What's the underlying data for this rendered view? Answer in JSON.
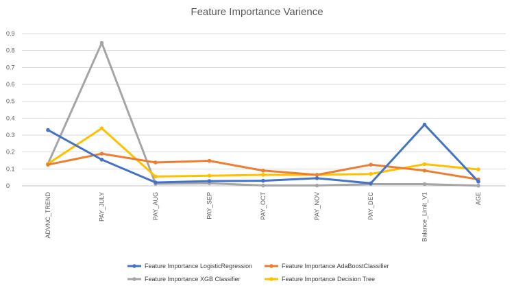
{
  "chart_data": {
    "type": "line",
    "title": "Feature Importance Varience",
    "categories": [
      "ADVNC_TREND",
      "PAY_JULY",
      "PAY_AUG",
      "PAY_SEP",
      "PAY_OCT",
      "PAY_NOV",
      "PAY_DEC",
      "Balance_Limit_V1",
      "AGE"
    ],
    "ylim": [
      0,
      0.9
    ],
    "yticks": [
      "0",
      "0.1",
      "0.2",
      "0.3",
      "0.4",
      "0.5",
      "0.6",
      "0.7",
      "0.8",
      "0.9"
    ],
    "grid": true,
    "legend_position": "bottom",
    "series": [
      {
        "name": "Feature Importance  LogisticRegression",
        "color": "#4472c4",
        "values": [
          0.33,
          0.155,
          0.02,
          0.028,
          0.03,
          0.045,
          0.015,
          0.362,
          0.025
        ]
      },
      {
        "name": "Feature Importance  AdaBoostClassifier",
        "color": "#ed7d31",
        "values": [
          0.125,
          0.19,
          0.138,
          0.148,
          0.09,
          0.065,
          0.125,
          0.09,
          0.038
        ]
      },
      {
        "name": "Feature Importance  XGB Classifier",
        "color": "#a5a5a5",
        "values": [
          0.13,
          0.845,
          0.012,
          0.015,
          0.002,
          0.002,
          0.01,
          0.01,
          0.001
        ]
      },
      {
        "name": "Feature Importance  Decision Tree",
        "color": "#ffc000",
        "values": [
          0.13,
          0.34,
          0.055,
          0.06,
          0.065,
          0.065,
          0.07,
          0.128,
          0.097
        ]
      }
    ]
  }
}
